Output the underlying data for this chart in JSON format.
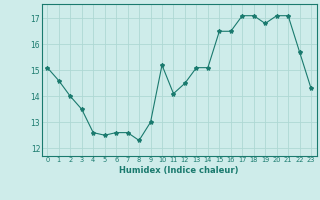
{
  "x": [
    0,
    1,
    2,
    3,
    4,
    5,
    6,
    7,
    8,
    9,
    10,
    11,
    12,
    13,
    14,
    15,
    16,
    17,
    18,
    19,
    20,
    21,
    22,
    23
  ],
  "y": [
    15.1,
    14.6,
    14.0,
    13.5,
    12.6,
    12.5,
    12.6,
    12.6,
    12.3,
    13.0,
    15.2,
    14.1,
    14.5,
    15.1,
    15.1,
    16.5,
    16.5,
    17.1,
    17.1,
    16.8,
    17.1,
    17.1,
    15.7,
    14.3
  ],
  "line_color": "#1a7a6e",
  "marker": "*",
  "marker_size": 3,
  "bg_color": "#ceecea",
  "grid_color": "#aed8d4",
  "xlabel": "Humidex (Indice chaleur)",
  "ylabel_ticks": [
    12,
    13,
    14,
    15,
    16,
    17
  ],
  "xtick_labels": [
    "0",
    "1",
    "2",
    "3",
    "4",
    "5",
    "6",
    "7",
    "8",
    "9",
    "10",
    "11",
    "12",
    "13",
    "14",
    "15",
    "16",
    "17",
    "18",
    "19",
    "20",
    "21",
    "22",
    "23"
  ],
  "xlim": [
    -0.5,
    23.5
  ],
  "ylim": [
    11.7,
    17.55
  ]
}
